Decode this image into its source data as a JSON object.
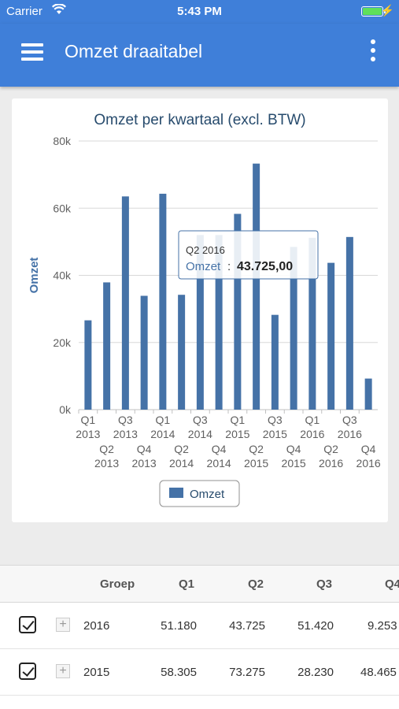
{
  "status_bar": {
    "carrier": "Carrier",
    "time": "5:43 PM"
  },
  "app_bar": {
    "title": "Omzet draaitabel"
  },
  "chart_data": {
    "type": "bar",
    "title": "Omzet per kwartaal (excl. BTW)",
    "ylabel": "Omzet",
    "xlabel": "",
    "ylim": [
      0,
      80000
    ],
    "ytick_labels": [
      "0k",
      "20k",
      "40k",
      "60k",
      "80k"
    ],
    "categories": [
      "Q1 2013",
      "Q2 2013",
      "Q3 2013",
      "Q4 2013",
      "Q1 2014",
      "Q2 2014",
      "Q3 2014",
      "Q4 2014",
      "Q1 2015",
      "Q2 2015",
      "Q3 2015",
      "Q4 2015",
      "Q1 2016",
      "Q2 2016",
      "Q3 2016",
      "Q4 2016"
    ],
    "series": [
      {
        "name": "Omzet",
        "color": "#4572a7",
        "values": [
          26600,
          37900,
          63500,
          33900,
          64300,
          34200,
          52000,
          52000,
          58305,
          73275,
          28230,
          48465,
          51180,
          43725,
          51420,
          9253
        ]
      }
    ],
    "grid": true,
    "legend": "bottom-center",
    "tooltip": {
      "title": "Q2 2016",
      "label": "Omzet",
      "value": "43.725,00"
    }
  },
  "table": {
    "headers": [
      "Groep",
      "Q1",
      "Q2",
      "Q3",
      "Q4"
    ],
    "rows": [
      {
        "checked": true,
        "expand": "+",
        "group": "2016",
        "q1": "51.180",
        "q2": "43.725",
        "q3": "51.420",
        "q4": "9.253"
      },
      {
        "checked": true,
        "expand": "+",
        "group": "2015",
        "q1": "58.305",
        "q2": "73.275",
        "q3": "28.230",
        "q4": "48.465"
      }
    ]
  }
}
